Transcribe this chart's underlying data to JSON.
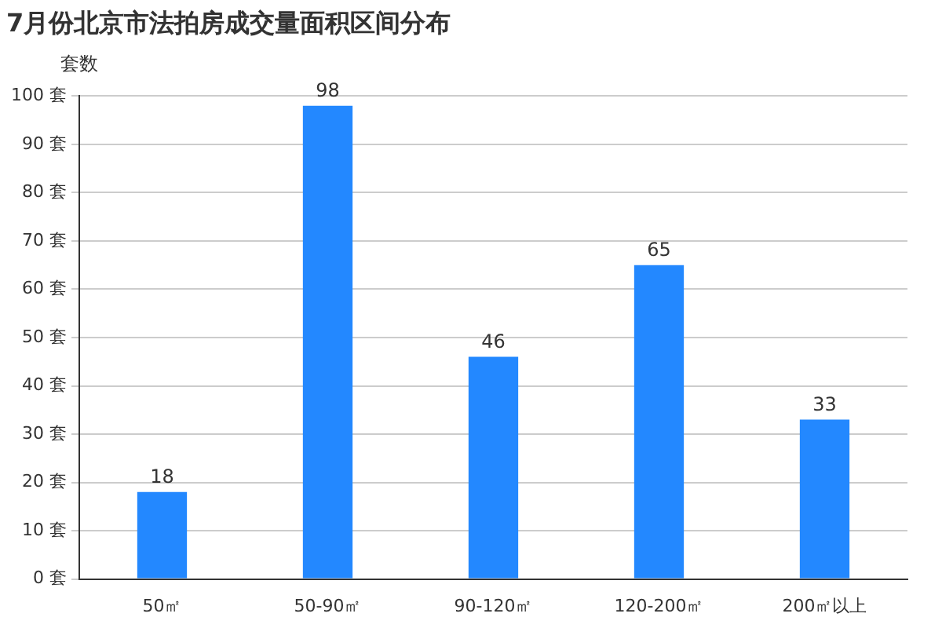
{
  "chart_data": {
    "type": "bar",
    "title": "7月份北京市法拍房成交量面积区间分布",
    "ylabel": "套数",
    "categories": [
      "50㎡",
      "50-90㎡",
      "90-120㎡",
      "120-200㎡",
      "200㎡以上"
    ],
    "values": [
      18,
      98,
      46,
      65,
      33
    ],
    "color": "#2388ff",
    "ylim": [
      0,
      100
    ],
    "yticks": [
      {
        "value": 0,
        "label": "0 套"
      },
      {
        "value": 10,
        "label": "10 套"
      },
      {
        "value": 20,
        "label": "20 套"
      },
      {
        "value": 30,
        "label": "30 套"
      },
      {
        "value": 40,
        "label": "40 套"
      },
      {
        "value": 50,
        "label": "50 套"
      },
      {
        "value": 60,
        "label": "60 套"
      },
      {
        "value": 70,
        "label": "70 套"
      },
      {
        "value": 80,
        "label": "80 套"
      },
      {
        "value": 90,
        "label": "90 套"
      },
      {
        "value": 100,
        "label": "100 套"
      }
    ],
    "grid": "y",
    "data_labels": true
  }
}
